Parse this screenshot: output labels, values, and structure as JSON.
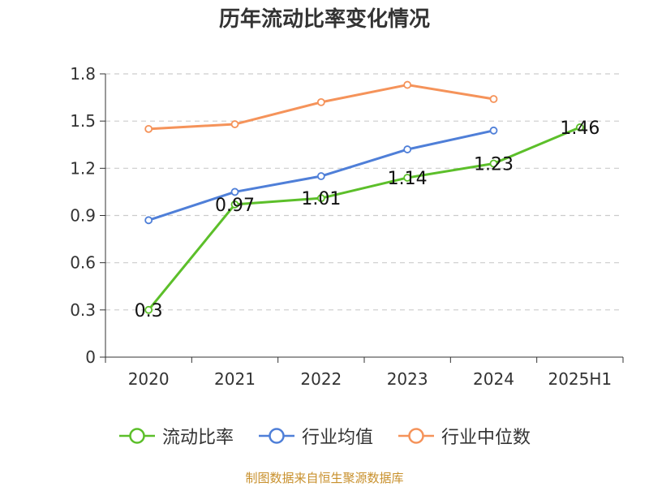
{
  "chart_data": {
    "type": "line",
    "title": "历年流动比率变化情况",
    "categories": [
      "2020",
      "2021",
      "2022",
      "2023",
      "2024",
      "2025H1"
    ],
    "ylim": [
      0,
      1.8
    ],
    "yticks": [
      "0",
      "0.3",
      "0.6",
      "0.9",
      "1.2",
      "1.5",
      "1.8"
    ],
    "grid": true,
    "legend_position": "bottom",
    "series": [
      {
        "name": "流动比率",
        "color": "#5cbf2a",
        "values": [
          0.3,
          0.97,
          1.01,
          1.14,
          1.23,
          1.46
        ],
        "labels": [
          "0.3",
          "0.97",
          "1.01",
          "1.14",
          "1.23",
          "1.46"
        ]
      },
      {
        "name": "行业均值",
        "color": "#4f7fd8",
        "values": [
          0.87,
          1.05,
          1.15,
          1.32,
          1.44,
          null
        ]
      },
      {
        "name": "行业中位数",
        "color": "#f5935a",
        "values": [
          1.45,
          1.48,
          1.62,
          1.73,
          1.64,
          null
        ]
      }
    ]
  },
  "source_note": "制图数据来自恒生聚源数据库"
}
